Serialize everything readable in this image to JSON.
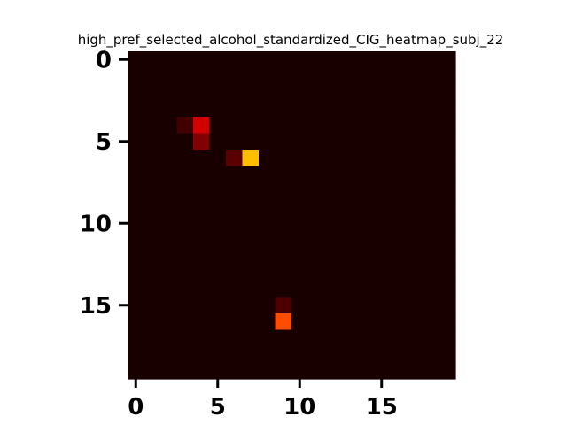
{
  "chart_data": {
    "type": "heatmap",
    "title": "high_pref_selected_alcohol_standardized_CIG_heatmap_subj_22",
    "xlabel": "",
    "ylabel": "",
    "rows": 20,
    "cols": 20,
    "xlim": [
      -0.5,
      19.5
    ],
    "ylim": [
      19.5,
      -0.5
    ],
    "x_ticks": [
      0,
      5,
      10,
      15
    ],
    "y_ticks": [
      0,
      5,
      10,
      15
    ],
    "x_tick_labels": [
      "0",
      "5",
      "10",
      "15"
    ],
    "y_tick_labels": [
      "0",
      "5",
      "10",
      "15"
    ],
    "colormap": "hot",
    "vmin": 0,
    "vmax": 1,
    "background_value": 0.02,
    "cells": [
      {
        "row": 4,
        "col": 3,
        "value": 0.08
      },
      {
        "row": 4,
        "col": 4,
        "value": 0.3
      },
      {
        "row": 5,
        "col": 4,
        "value": 0.18
      },
      {
        "row": 6,
        "col": 6,
        "value": 0.12
      },
      {
        "row": 6,
        "col": 7,
        "value": 0.65
      },
      {
        "row": 15,
        "col": 9,
        "value": 0.1
      },
      {
        "row": 16,
        "col": 9,
        "value": 0.48
      }
    ]
  }
}
